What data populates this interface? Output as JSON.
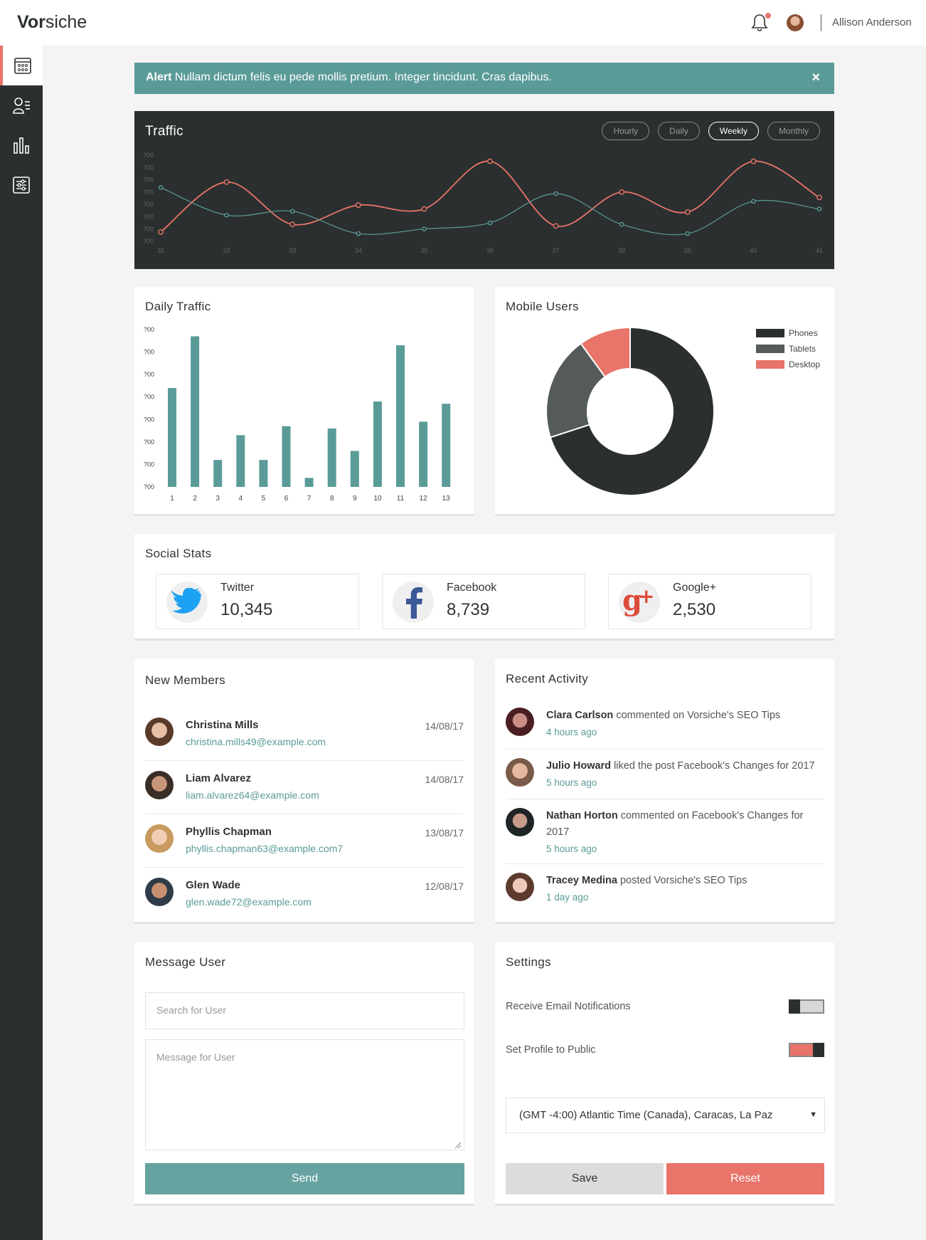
{
  "header": {
    "brand_bold": "Vor",
    "brand_rest": "siche",
    "username": "Allison Anderson"
  },
  "sidebar": {
    "items": [
      {
        "icon": "calendar-icon",
        "active": true
      },
      {
        "icon": "users-list-icon",
        "active": false
      },
      {
        "icon": "bar-chart-icon",
        "active": false
      },
      {
        "icon": "settings-sliders-icon",
        "active": false
      }
    ]
  },
  "alert": {
    "label": "Alert",
    "text": " Nullam dictum felis eu pede mollis pretium. Integer tincidunt. Cras dapibus.",
    "close": "×"
  },
  "traffic": {
    "title": "Traffic",
    "tabs": [
      "Hourly",
      "Daily",
      "Weekly",
      "Monthly"
    ],
    "active_tab": "Weekly"
  },
  "daily_traffic": {
    "title": "Daily Traffic"
  },
  "mobile_users": {
    "title": "Mobile Users"
  },
  "social": {
    "title": "Social Stats",
    "items": [
      {
        "name": "Twitter",
        "count": "10,345"
      },
      {
        "name": "Facebook",
        "count": "8,739"
      },
      {
        "name": "Google+",
        "count": "2,530"
      }
    ]
  },
  "members": {
    "title": "New Members",
    "items": [
      {
        "name": "Christina Mills",
        "email": "christina.mills49@example.com",
        "date": "14/08/17"
      },
      {
        "name": "Liam Alvarez",
        "email": "liam.alvarez64@example.com",
        "date": "14/08/17"
      },
      {
        "name": "Phyllis Chapman",
        "email": "phyllis.chapman63@example.com7",
        "date": "13/08/17"
      },
      {
        "name": "Glen Wade",
        "email": "glen.wade72@example.com",
        "date": "12/08/17"
      }
    ]
  },
  "activity": {
    "title": "Recent Activity",
    "items": [
      {
        "name": "Clara Carlson",
        "text": " commented on Vorsiche's SEO Tips",
        "time": "4 hours ago"
      },
      {
        "name": "Julio Howard",
        "text": " liked the post Facebook's Changes for 2017",
        "time": "5 hours ago"
      },
      {
        "name": "Nathan Horton",
        "text": " commented on Facebook's Changes for 2017",
        "time": "5 hours ago"
      },
      {
        "name": "Tracey Medina",
        "text": " posted Vorsiche's SEO Tips",
        "time": "1 day ago"
      }
    ]
  },
  "message": {
    "title": "Message User",
    "search_placeholder": "Search for User",
    "message_placeholder": "Message for User",
    "send_label": "Send"
  },
  "settings": {
    "title": "Settings",
    "email_label": "Receive Email Notifications",
    "email_on": false,
    "public_label": "Set Profile to Public",
    "public_on": true,
    "timezone": "(GMT -4:00) Atlantic Time (Canada), Caracas, La Paz",
    "save_label": "Save",
    "reset_label": "Reset"
  },
  "chart_data": [
    {
      "type": "line",
      "x": [
        "31",
        "32",
        "33",
        "34",
        "35",
        "36",
        "37",
        "38",
        "39",
        "40",
        "41"
      ],
      "yticks": [
        "?00",
        "?00",
        "?00",
        "?00",
        "?00",
        "?00",
        "?00",
        "?00"
      ],
      "series": [
        {
          "color": "#e8746a",
          "values": [
            0.0,
            0.65,
            0.1,
            0.35,
            0.3,
            0.92,
            0.08,
            0.52,
            0.26,
            0.92,
            0.45
          ]
        },
        {
          "color": "#5a9b98",
          "values": [
            0.58,
            0.22,
            0.27,
            -0.02,
            0.04,
            0.12,
            0.5,
            0.1,
            -0.02,
            0.4,
            0.3
          ]
        }
      ]
    },
    {
      "type": "bar",
      "categories": [
        "1",
        "2",
        "3",
        "4",
        "5",
        "6",
        "7",
        "8",
        "9",
        "10",
        "11",
        "12",
        "13"
      ],
      "values": [
        4.4,
        6.7,
        1.2,
        2.3,
        1.2,
        2.7,
        0.4,
        2.6,
        1.6,
        3.8,
        6.3,
        2.9,
        3.7
      ],
      "yticks": [
        "?00",
        "?00",
        "?00",
        "?00",
        "?00",
        "?00",
        "?00",
        "?00"
      ],
      "ylim": [
        0,
        7
      ],
      "color": "#5a9b98"
    },
    {
      "type": "pie",
      "labels": [
        "Phones",
        "Tablets",
        "Desktop"
      ],
      "values": [
        70,
        20,
        10
      ],
      "colors": [
        "#2b2f2f",
        "#555b5a",
        "#e8746a"
      ],
      "legend_position": "top-right",
      "donut": true
    }
  ]
}
